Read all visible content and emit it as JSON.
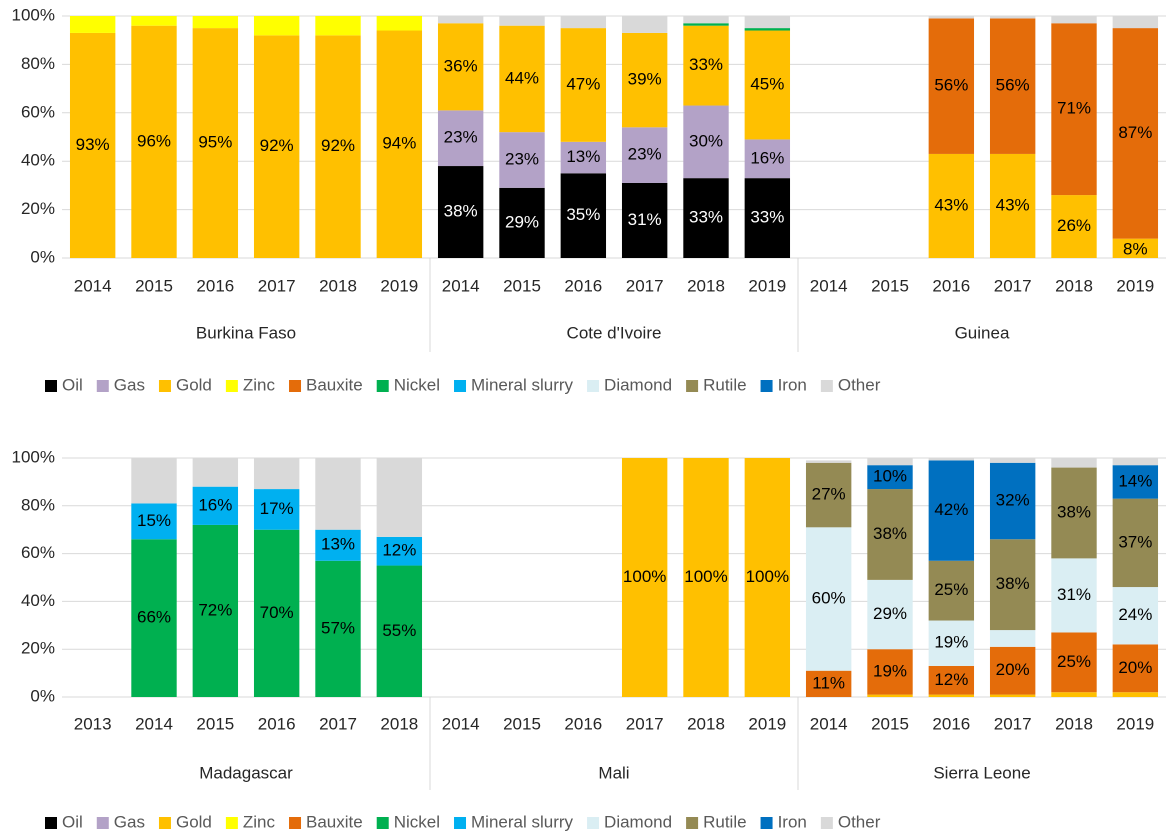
{
  "chart_data": [
    {
      "type": "bar",
      "stacked": true,
      "grid": true,
      "legend": "bottom",
      "ylim": [
        0,
        100
      ],
      "yticks": [
        {
          "value": 0,
          "label": "0%"
        },
        {
          "value": 20,
          "label": "20%"
        },
        {
          "value": 40,
          "label": "40%"
        },
        {
          "value": 60,
          "label": "60%"
        },
        {
          "value": 80,
          "label": "80%"
        },
        {
          "value": 100,
          "label": "100%"
        }
      ],
      "groups": [
        {
          "name": "Burkina Faso",
          "categories": [
            "2014",
            "2015",
            "2016",
            "2017",
            "2018",
            "2019"
          ]
        },
        {
          "name": "Cote d'Ivoire",
          "categories": [
            "2014",
            "2015",
            "2016",
            "2017",
            "2018",
            "2019"
          ]
        },
        {
          "name": "Guinea",
          "categories": [
            "2014",
            "2015",
            "2016",
            "2017",
            "2018",
            "2019"
          ]
        }
      ],
      "series": [
        {
          "name": "Oil",
          "color": "#000000",
          "label_color": "#ffffff",
          "values": [
            null,
            null,
            null,
            null,
            null,
            null,
            38,
            29,
            35,
            31,
            33,
            33,
            null,
            null,
            null,
            null,
            null,
            null
          ],
          "value_labels": [
            null,
            null,
            null,
            null,
            null,
            null,
            "38%",
            "29%",
            "35%",
            "31%",
            "33%",
            "33%",
            null,
            null,
            null,
            null,
            null,
            null
          ]
        },
        {
          "name": "Gas",
          "color": "#b3a2c7",
          "label_color": "#000000",
          "values": [
            null,
            null,
            null,
            null,
            null,
            null,
            23,
            23,
            13,
            23,
            30,
            16,
            null,
            null,
            null,
            null,
            null,
            null
          ],
          "value_labels": [
            null,
            null,
            null,
            null,
            null,
            null,
            "23%",
            "23%",
            "13%",
            "23%",
            "30%",
            "16%",
            null,
            null,
            null,
            null,
            null,
            null
          ]
        },
        {
          "name": "Gold",
          "color": "#ffc000",
          "label_color": "#000000",
          "values": [
            93,
            96,
            95,
            92,
            92,
            94,
            36,
            44,
            47,
            39,
            33,
            45,
            null,
            null,
            43,
            43,
            26,
            8
          ],
          "value_labels": [
            "93%",
            "96%",
            "95%",
            "92%",
            "92%",
            "94%",
            "36%",
            "44%",
            "47%",
            "39%",
            "33%",
            "45%",
            null,
            null,
            "43%",
            "43%",
            "26%",
            "8%"
          ]
        },
        {
          "name": "Zinc",
          "color": "#ffff00",
          "label_color": "#000000",
          "values": [
            7,
            4,
            5,
            8,
            8,
            6,
            null,
            null,
            null,
            null,
            null,
            null,
            null,
            null,
            null,
            null,
            null,
            null
          ]
        },
        {
          "name": "Bauxite",
          "color": "#e46c0a",
          "label_color": "#000000",
          "values": [
            null,
            null,
            null,
            null,
            null,
            null,
            null,
            null,
            null,
            null,
            null,
            null,
            null,
            null,
            56,
            56,
            71,
            87
          ],
          "value_labels": [
            null,
            null,
            null,
            null,
            null,
            null,
            null,
            null,
            null,
            null,
            null,
            null,
            null,
            null,
            "56%",
            "56%",
            "71%",
            "87%"
          ]
        },
        {
          "name": "Nickel",
          "color": "#00b050",
          "label_color": "#000000",
          "values": [
            null,
            null,
            null,
            null,
            null,
            null,
            null,
            null,
            null,
            null,
            1,
            1,
            null,
            null,
            null,
            null,
            null,
            null
          ]
        },
        {
          "name": "Mineral slurry",
          "color": "#00b0f0",
          "label_color": "#000000",
          "values": [
            null,
            null,
            null,
            null,
            null,
            null,
            null,
            null,
            null,
            null,
            null,
            null,
            null,
            null,
            null,
            null,
            null,
            null
          ]
        },
        {
          "name": "Diamond",
          "color": "#daeef3",
          "label_color": "#000000",
          "values": [
            null,
            null,
            null,
            null,
            null,
            null,
            null,
            null,
            null,
            null,
            null,
            null,
            null,
            null,
            null,
            null,
            null,
            null
          ]
        },
        {
          "name": "Rutile",
          "color": "#948a54",
          "label_color": "#000000",
          "values": [
            null,
            null,
            null,
            null,
            null,
            null,
            null,
            null,
            null,
            null,
            null,
            null,
            null,
            null,
            null,
            null,
            null,
            null
          ]
        },
        {
          "name": "Iron",
          "color": "#0070c0",
          "label_color": "#000000",
          "values": [
            null,
            null,
            null,
            null,
            null,
            null,
            null,
            null,
            null,
            null,
            null,
            null,
            null,
            null,
            null,
            null,
            null,
            null
          ]
        },
        {
          "name": "Other",
          "color": "#d9d9d9",
          "label_color": "#000000",
          "values": [
            null,
            null,
            null,
            null,
            null,
            null,
            3,
            4,
            5,
            7,
            3,
            5,
            null,
            null,
            1,
            1,
            3,
            5
          ]
        }
      ]
    },
    {
      "type": "bar",
      "stacked": true,
      "grid": true,
      "legend": "bottom",
      "ylim": [
        0,
        100
      ],
      "yticks": [
        {
          "value": 0,
          "label": "0%"
        },
        {
          "value": 20,
          "label": "20%"
        },
        {
          "value": 40,
          "label": "40%"
        },
        {
          "value": 60,
          "label": "60%"
        },
        {
          "value": 80,
          "label": "80%"
        },
        {
          "value": 100,
          "label": "100%"
        }
      ],
      "groups": [
        {
          "name": "Madagascar",
          "categories": [
            "2013",
            "2014",
            "2015",
            "2016",
            "2017",
            "2018"
          ]
        },
        {
          "name": "Mali",
          "categories": [
            "2014",
            "2015",
            "2016",
            "2017",
            "2018",
            "2019"
          ]
        },
        {
          "name": "Sierra Leone",
          "categories": [
            "2014",
            "2015",
            "2016",
            "2017",
            "2018",
            "2019"
          ]
        }
      ],
      "series": [
        {
          "name": "Oil",
          "color": "#000000",
          "label_color": "#ffffff",
          "values": [
            null,
            null,
            null,
            null,
            null,
            null,
            null,
            null,
            null,
            null,
            null,
            null,
            null,
            null,
            null,
            null,
            null,
            null
          ]
        },
        {
          "name": "Gas",
          "color": "#b3a2c7",
          "label_color": "#000000",
          "values": [
            null,
            null,
            null,
            null,
            null,
            null,
            null,
            null,
            null,
            null,
            null,
            null,
            null,
            null,
            null,
            null,
            null,
            null
          ]
        },
        {
          "name": "Gold",
          "color": "#ffc000",
          "label_color": "#000000",
          "values": [
            null,
            null,
            null,
            null,
            null,
            null,
            null,
            null,
            null,
            100,
            100,
            100,
            null,
            1,
            1,
            1,
            2,
            2
          ],
          "value_labels": [
            null,
            null,
            null,
            null,
            null,
            null,
            null,
            null,
            null,
            "100%",
            "100%",
            "100%",
            null,
            null,
            null,
            null,
            null,
            null
          ]
        },
        {
          "name": "Zinc",
          "color": "#ffff00",
          "label_color": "#000000",
          "values": [
            null,
            null,
            null,
            null,
            null,
            null,
            null,
            null,
            null,
            null,
            null,
            null,
            null,
            null,
            null,
            null,
            null,
            null
          ]
        },
        {
          "name": "Bauxite",
          "color": "#e46c0a",
          "label_color": "#000000",
          "values": [
            null,
            null,
            null,
            null,
            null,
            null,
            null,
            null,
            null,
            null,
            null,
            null,
            11,
            19,
            12,
            20,
            25,
            20
          ],
          "value_labels": [
            null,
            null,
            null,
            null,
            null,
            null,
            null,
            null,
            null,
            null,
            null,
            null,
            "11%",
            "19%",
            "12%",
            "20%",
            "25%",
            "20%"
          ]
        },
        {
          "name": "Nickel",
          "color": "#00b050",
          "label_color": "#000000",
          "values": [
            null,
            66,
            72,
            70,
            57,
            55,
            null,
            null,
            null,
            null,
            null,
            null,
            null,
            null,
            null,
            null,
            null,
            null
          ],
          "value_labels": [
            null,
            "66%",
            "72%",
            "70%",
            "57%",
            "55%",
            null,
            null,
            null,
            null,
            null,
            null,
            null,
            null,
            null,
            null,
            null,
            null
          ]
        },
        {
          "name": "Mineral slurry",
          "color": "#00b0f0",
          "label_color": "#000000",
          "values": [
            null,
            15,
            16,
            17,
            13,
            12,
            null,
            null,
            null,
            null,
            null,
            null,
            null,
            null,
            null,
            null,
            null,
            null
          ],
          "value_labels": [
            null,
            "15%",
            "16%",
            "17%",
            "13%",
            "12%",
            null,
            null,
            null,
            null,
            null,
            null,
            null,
            null,
            null,
            null,
            null,
            null
          ]
        },
        {
          "name": "Diamond",
          "color": "#daeef3",
          "label_color": "#000000",
          "values": [
            null,
            null,
            null,
            null,
            null,
            null,
            null,
            null,
            null,
            null,
            null,
            null,
            60,
            29,
            19,
            7,
            31,
            24
          ],
          "value_labels": [
            null,
            null,
            null,
            null,
            null,
            null,
            null,
            null,
            null,
            null,
            null,
            null,
            "60%",
            "29%",
            "19%",
            null,
            "31%",
            "24%"
          ]
        },
        {
          "name": "Rutile",
          "color": "#948a54",
          "label_color": "#000000",
          "values": [
            null,
            null,
            null,
            null,
            null,
            null,
            null,
            null,
            null,
            null,
            null,
            null,
            27,
            38,
            25,
            38,
            38,
            37
          ],
          "value_labels": [
            null,
            null,
            null,
            null,
            null,
            null,
            null,
            null,
            null,
            null,
            null,
            null,
            "27%",
            "38%",
            "25%",
            "38%",
            "38%",
            "37%"
          ]
        },
        {
          "name": "Iron",
          "color": "#0070c0",
          "label_color": "#000000",
          "values": [
            null,
            null,
            null,
            null,
            null,
            null,
            null,
            null,
            null,
            null,
            null,
            null,
            null,
            10,
            42,
            32,
            null,
            14
          ],
          "value_labels": [
            null,
            null,
            null,
            null,
            null,
            null,
            null,
            null,
            null,
            null,
            null,
            null,
            null,
            "10%",
            "42%",
            "32%",
            null,
            "14%"
          ]
        },
        {
          "name": "Other",
          "color": "#d9d9d9",
          "label_color": "#000000",
          "values": [
            null,
            19,
            12,
            13,
            30,
            33,
            null,
            null,
            null,
            null,
            null,
            null,
            1,
            3,
            1,
            2,
            4,
            3
          ]
        }
      ]
    }
  ]
}
